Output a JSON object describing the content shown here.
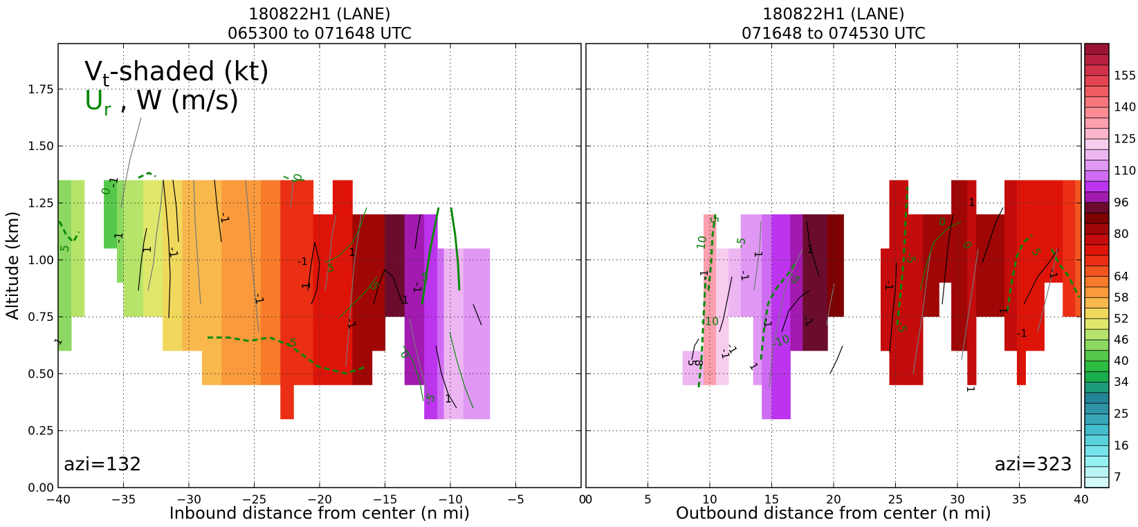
{
  "chart_data": [
    {
      "type": "heatmap",
      "title_line1": "180822H1 (LANE)",
      "title_line2": "065300 to 071648 UTC",
      "xlabel": "Inbound distance from center (n mi)",
      "ylabel": "Altitude (km)",
      "xlim": [
        -40,
        0
      ],
      "ylim": [
        0,
        1.95
      ],
      "xticks": [
        "−40",
        "−35",
        "−30",
        "−25",
        "−20",
        "−15",
        "−10",
        "−5",
        "0"
      ],
      "xtick_values": [
        -40,
        -35,
        -30,
        -25,
        -20,
        -15,
        -10,
        -5,
        0
      ],
      "yticks": [
        "0.00",
        "0.25",
        "0.50",
        "0.75",
        "1.00",
        "1.25",
        "1.50",
        "1.75"
      ],
      "ytick_values": [
        0,
        0.25,
        0.5,
        0.75,
        1.0,
        1.25,
        1.5,
        1.75
      ],
      "grid": true,
      "annotation": "azi=132",
      "legend_line1_main": "V",
      "legend_line1_sub": "t",
      "legend_line1_rest": "-shaded (kt)",
      "legend_line2_main": "U",
      "legend_line2_sub": "r",
      "legend_line2_rest": " , W (m/s)",
      "contour_labels": [
        "0",
        "-1",
        "-1",
        "5",
        "1",
        "-1",
        "1",
        "-1",
        "-1",
        "0",
        "1",
        "-1",
        "5",
        "-5",
        "5",
        "1",
        "-1",
        "0",
        "-1",
        "5",
        "1",
        "1",
        "-5"
      ],
      "columns": [
        {
          "x0": -40,
          "x1": -39,
          "y0": 0.6,
          "y1": 1.35,
          "vt": 44
        },
        {
          "x0": -39,
          "x1": -38,
          "y0": 0.75,
          "y1": 1.35,
          "vt": 46
        },
        {
          "x0": -36.5,
          "x1": -35.5,
          "y0": 1.05,
          "y1": 1.35,
          "vt": 42
        },
        {
          "x0": -35.5,
          "x1": -35,
          "y0": 0.9,
          "y1": 1.35,
          "vt": 45
        },
        {
          "x0": -35,
          "x1": -33.5,
          "y0": 0.75,
          "y1": 1.35,
          "vt": 48
        },
        {
          "x0": -33.5,
          "x1": -32,
          "y0": 0.75,
          "y1": 1.35,
          "vt": 50
        },
        {
          "x0": -32,
          "x1": -30.5,
          "y0": 0.6,
          "y1": 1.35,
          "vt": 54
        },
        {
          "x0": -30.5,
          "x1": -29,
          "y0": 0.6,
          "y1": 1.35,
          "vt": 55
        },
        {
          "x0": -29,
          "x1": -27.5,
          "y0": 0.45,
          "y1": 1.35,
          "vt": 56
        },
        {
          "x0": -27.5,
          "x1": -26,
          "y0": 0.45,
          "y1": 1.35,
          "vt": 58
        },
        {
          "x0": -26,
          "x1": -24.5,
          "y0": 0.45,
          "y1": 1.35,
          "vt": 60
        },
        {
          "x0": -24.5,
          "x1": -23,
          "y0": 0.45,
          "y1": 1.35,
          "vt": 63
        },
        {
          "x0": -23,
          "x1": -22,
          "y0": 0.3,
          "y1": 1.35,
          "vt": 68
        },
        {
          "x0": -22,
          "x1": -20.5,
          "y0": 0.45,
          "y1": 1.35,
          "vt": 70
        },
        {
          "x0": -20.5,
          "x1": -19,
          "y0": 0.45,
          "y1": 1.2,
          "vt": 73
        },
        {
          "x0": -19,
          "x1": -17.5,
          "y0": 0.45,
          "y1": 1.35,
          "vt": 75
        },
        {
          "x0": -17.5,
          "x1": -16,
          "y0": 0.45,
          "y1": 1.2,
          "vt": 80
        },
        {
          "x0": -16,
          "x1": -15,
          "y0": 0.6,
          "y1": 1.2,
          "vt": 84
        },
        {
          "x0": -15,
          "x1": -13.5,
          "y0": 0.75,
          "y1": 1.2,
          "vt": 90
        },
        {
          "x0": -13.5,
          "x1": -12,
          "y0": 0.45,
          "y1": 1.2,
          "vt": 98
        },
        {
          "x0": -12,
          "x1": -11,
          "y0": 0.3,
          "y1": 1.2,
          "vt": 105
        },
        {
          "x0": -11,
          "x1": -10.5,
          "y0": 0.3,
          "y1": 1.05,
          "vt": 108
        },
        {
          "x0": -10.5,
          "x1": -9,
          "y0": 0.3,
          "y1": 1.05,
          "vt": 115
        },
        {
          "x0": -9,
          "x1": -7,
          "y0": 0.3,
          "y1": 1.05,
          "vt": 110
        }
      ]
    },
    {
      "type": "heatmap",
      "title_line1": "180822H1 (LANE)",
      "title_line2": "071648 to 074530 UTC",
      "xlabel": "Outbound distance from center (n mi)",
      "ylabel": "",
      "xlim": [
        0,
        40
      ],
      "ylim": [
        0,
        1.95
      ],
      "xticks": [
        "0",
        "5",
        "10",
        "15",
        "20",
        "25",
        "30",
        "35",
        "40"
      ],
      "xtick_values": [
        0,
        5,
        10,
        15,
        20,
        25,
        30,
        35,
        40
      ],
      "grid": true,
      "annotation": "azi=323",
      "contour_labels": [
        "5",
        "10",
        "-1",
        "-1",
        "-5",
        "1",
        "-1",
        "-5",
        "-1",
        "-1",
        "-10",
        "-10",
        "5",
        "8",
        "1",
        "-1",
        "1",
        "0",
        "-5",
        "0",
        "1",
        "-5",
        "-1",
        "1",
        "-1",
        "1",
        "5",
        "-1"
      ],
      "columns": [
        {
          "x0": 7.8,
          "x1": 9.5,
          "y0": 0.45,
          "y1": 0.6,
          "vt": 118
        },
        {
          "x0": 9.5,
          "x1": 10.5,
          "y0": 0.45,
          "y1": 1.2,
          "vt": 130
        },
        {
          "x0": 10.5,
          "x1": 11.5,
          "y0": 0.45,
          "y1": 1.05,
          "vt": 120
        },
        {
          "x0": 11.5,
          "x1": 12.5,
          "y0": 0.75,
          "y1": 1.05,
          "vt": 115
        },
        {
          "x0": 12.5,
          "x1": 13.5,
          "y0": 0.75,
          "y1": 1.2,
          "vt": 112
        },
        {
          "x0": 13.5,
          "x1": 14.2,
          "y0": 0.45,
          "y1": 1.2,
          "vt": 110
        },
        {
          "x0": 14.2,
          "x1": 15,
          "y0": 0.3,
          "y1": 1.2,
          "vt": 108
        },
        {
          "x0": 15,
          "x1": 16.5,
          "y0": 0.3,
          "y1": 1.2,
          "vt": 102
        },
        {
          "x0": 16.5,
          "x1": 17.5,
          "y0": 0.6,
          "y1": 1.2,
          "vt": 96
        },
        {
          "x0": 17.5,
          "x1": 19.5,
          "y0": 0.6,
          "y1": 1.2,
          "vt": 90
        },
        {
          "x0": 19.5,
          "x1": 20.8,
          "y0": 0.75,
          "y1": 1.2,
          "vt": 86
        },
        {
          "x0": 23.8,
          "x1": 24.5,
          "y0": 0.6,
          "y1": 1.05,
          "vt": 78
        },
        {
          "x0": 24.5,
          "x1": 26,
          "y0": 0.45,
          "y1": 1.35,
          "vt": 76
        },
        {
          "x0": 26,
          "x1": 27.2,
          "y0": 0.45,
          "y1": 1.2,
          "vt": 78
        },
        {
          "x0": 27.2,
          "x1": 28.5,
          "y0": 0.75,
          "y1": 1.2,
          "vt": 80
        },
        {
          "x0": 28.5,
          "x1": 29.5,
          "y0": 0.9,
          "y1": 1.2,
          "vt": 82
        },
        {
          "x0": 29.5,
          "x1": 30.8,
          "y0": 0.6,
          "y1": 1.35,
          "vt": 80
        },
        {
          "x0": 30.8,
          "x1": 31.5,
          "y0": 0.45,
          "y1": 1.35,
          "vt": 78
        },
        {
          "x0": 31.5,
          "x1": 33.8,
          "y0": 0.75,
          "y1": 1.2,
          "vt": 80
        },
        {
          "x0": 33.8,
          "x1": 34.8,
          "y0": 0.6,
          "y1": 1.35,
          "vt": 76
        },
        {
          "x0": 34.8,
          "x1": 35.5,
          "y0": 0.45,
          "y1": 1.35,
          "vt": 74
        },
        {
          "x0": 35.5,
          "x1": 37,
          "y0": 0.6,
          "y1": 1.35,
          "vt": 75
        },
        {
          "x0": 37,
          "x1": 38.5,
          "y0": 0.9,
          "y1": 1.35,
          "vt": 73
        },
        {
          "x0": 38.5,
          "x1": 39.5,
          "y0": 0.75,
          "y1": 1.35,
          "vt": 68
        },
        {
          "x0": 39.5,
          "x1": 40,
          "y0": 0.75,
          "y1": 1.35,
          "vt": 66
        }
      ]
    },
    {
      "type": "colorbar",
      "tick_labels": [
        "155",
        "140",
        "125",
        "110",
        "96",
        "80",
        "64",
        "58",
        "52",
        "46",
        "40",
        "34",
        "25",
        "16",
        "7"
      ],
      "tick_values": [
        155,
        140,
        125,
        110,
        96,
        80,
        64,
        58,
        52,
        46,
        40,
        34,
        25,
        16,
        7
      ],
      "bounds": [
        4,
        7,
        10,
        13,
        16,
        19,
        22,
        25,
        28,
        31,
        34,
        37,
        40,
        43,
        46,
        49,
        52,
        55,
        58,
        61,
        64,
        68,
        72,
        76,
        80,
        85,
        90,
        96,
        101,
        106,
        110,
        115,
        120,
        125,
        130,
        135,
        140,
        145,
        150,
        155,
        160
      ],
      "colors": [
        "#d4fafa",
        "#b8f6f6",
        "#95f0f2",
        "#74e2e8",
        "#5ad2dc",
        "#44bccb",
        "#38a8b9",
        "#2f95a6",
        "#258596",
        "#1d9c7c",
        "#1aae4c",
        "#2cbd42",
        "#55c84c",
        "#8cd862",
        "#b6e46a",
        "#dfe86a",
        "#f0d85c",
        "#f8b84c",
        "#fa9a3c",
        "#f77b2a",
        "#f25520",
        "#ea2f15",
        "#de1409",
        "#c40c0c",
        "#a00606",
        "#7e0000",
        "#6b0c2e",
        "#a31ab0",
        "#bc34ee",
        "#cf6cf3",
        "#e098f4",
        "#edb6f3",
        "#f7cced",
        "#fbb5cd",
        "#fc9fae",
        "#fb8c94",
        "#f8767c",
        "#f05c62",
        "#e54552",
        "#d23149",
        "#b82040",
        "#9c1434"
      ],
      "color_scale": "filled"
    }
  ]
}
